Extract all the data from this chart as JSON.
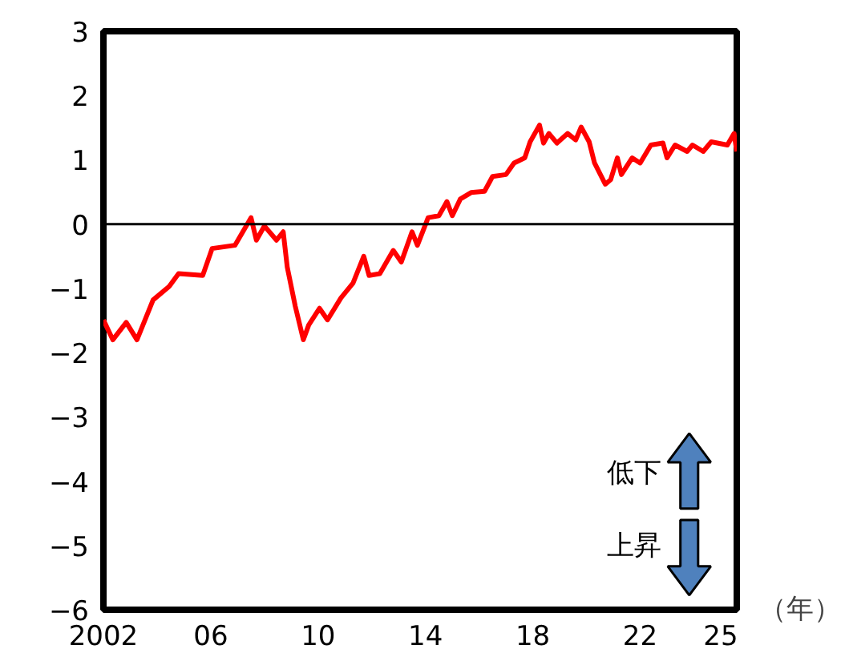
{
  "chart_data": {
    "type": "line",
    "xlabel": "（年）",
    "xlim": [
      2002,
      2025.6
    ],
    "ylim": [
      -6,
      3
    ],
    "xticks": [
      {
        "value": 2002,
        "label": "2002"
      },
      {
        "value": 2006,
        "label": "06"
      },
      {
        "value": 2010,
        "label": "10"
      },
      {
        "value": 2014,
        "label": "14"
      },
      {
        "value": 2018,
        "label": "18"
      },
      {
        "value": 2022,
        "label": "22"
      },
      {
        "value": 2025,
        "label": "25"
      }
    ],
    "yticks": [
      3,
      2,
      1,
      0,
      {
        "value": -1,
        "label": "−1"
      },
      {
        "value": -2,
        "label": "−2"
      },
      {
        "value": -3,
        "label": "−3"
      },
      {
        "value": -4,
        "label": "−4"
      },
      {
        "value": -5,
        "label": "−5"
      },
      {
        "value": -6,
        "label": "−6"
      }
    ],
    "grid": false,
    "marker": "none",
    "line_style": "solid",
    "ref_lines": [
      {
        "axis": "y",
        "value": 0,
        "color": "#000000"
      }
    ],
    "annotations": [
      "低下",
      "上昇"
    ],
    "series": [
      {
        "color": "#ff0000",
        "x": [
          2002.0,
          2002.35,
          2002.85,
          2003.25,
          2003.85,
          2004.45,
          2004.8,
          2005.7,
          2006.05,
          2006.9,
          2007.5,
          2007.7,
          2008.0,
          2008.45,
          2008.7,
          2008.85,
          2009.15,
          2009.45,
          2009.65,
          2010.05,
          2010.35,
          2010.85,
          2011.3,
          2011.7,
          2011.9,
          2012.3,
          2012.8,
          2013.1,
          2013.5,
          2013.7,
          2014.1,
          2014.5,
          2014.8,
          2015.0,
          2015.3,
          2015.7,
          2016.2,
          2016.5,
          2017.0,
          2017.3,
          2017.7,
          2017.9,
          2018.25,
          2018.4,
          2018.6,
          2018.9,
          2019.3,
          2019.6,
          2019.8,
          2020.1,
          2020.3,
          2020.7,
          2020.9,
          2021.15,
          2021.3,
          2021.7,
          2022.0,
          2022.4,
          2022.85,
          2023.0,
          2023.3,
          2023.75,
          2023.95,
          2024.35,
          2024.65,
          2025.25,
          2025.5,
          2025.6
        ],
        "values": [
          -1.49,
          -1.8,
          -1.53,
          -1.8,
          -1.18,
          -0.97,
          -0.77,
          -0.8,
          -0.38,
          -0.33,
          0.1,
          -0.25,
          -0.03,
          -0.25,
          -0.12,
          -0.67,
          -1.28,
          -1.8,
          -1.57,
          -1.31,
          -1.49,
          -1.15,
          -0.92,
          -0.5,
          -0.8,
          -0.77,
          -0.41,
          -0.59,
          -0.12,
          -0.33,
          0.1,
          0.13,
          0.35,
          0.13,
          0.39,
          0.49,
          0.51,
          0.74,
          0.77,
          0.95,
          1.03,
          1.28,
          1.54,
          1.26,
          1.41,
          1.26,
          1.41,
          1.31,
          1.51,
          1.28,
          0.95,
          0.62,
          0.69,
          1.03,
          0.77,
          1.03,
          0.95,
          1.23,
          1.26,
          1.03,
          1.23,
          1.13,
          1.23,
          1.13,
          1.28,
          1.23,
          1.41,
          1.13
        ]
      }
    ]
  }
}
